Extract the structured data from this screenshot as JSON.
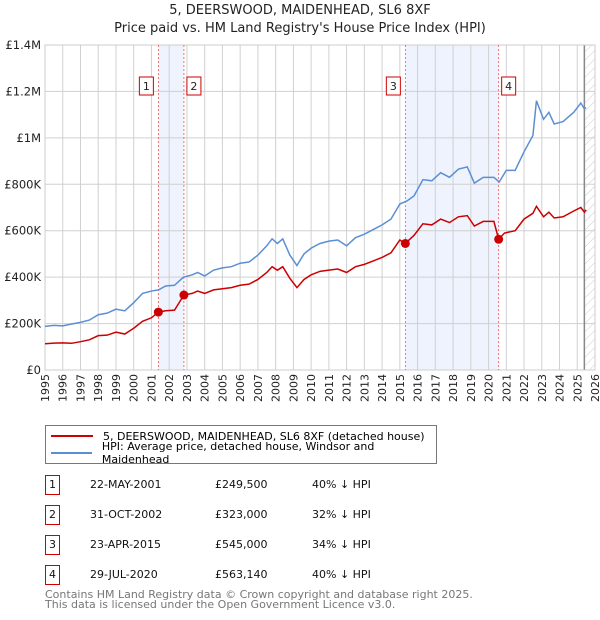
{
  "title": "5, DEERSWOOD, MAIDENHEAD, SL6 8XF",
  "subtitle": "Price paid vs. HM Land Registry's House Price Index (HPI)",
  "chart_data": {
    "type": "line",
    "xlim": [
      1995,
      2026
    ],
    "ylim": [
      0,
      1400000
    ],
    "yticks": [
      {
        "v": 0,
        "label": "£0"
      },
      {
        "v": 200000,
        "label": "£200K"
      },
      {
        "v": 400000,
        "label": "£400K"
      },
      {
        "v": 600000,
        "label": "£600K"
      },
      {
        "v": 800000,
        "label": "£800K"
      },
      {
        "v": 1000000,
        "label": "£1M"
      },
      {
        "v": 1200000,
        "label": "£1.2M"
      },
      {
        "v": 1400000,
        "label": "£1.4M"
      }
    ],
    "xticks": [
      "1995",
      "1996",
      "1997",
      "1998",
      "1999",
      "2000",
      "2001",
      "2002",
      "2003",
      "2004",
      "2005",
      "2006",
      "2007",
      "2008",
      "2009",
      "2010",
      "2011",
      "2012",
      "2013",
      "2014",
      "2015",
      "2016",
      "2017",
      "2018",
      "2019",
      "2020",
      "2021",
      "2022",
      "2023",
      "2024",
      "2025",
      "2026"
    ],
    "grid": true,
    "shaded_periods": [
      [
        2001.39,
        2002.83
      ],
      [
        2015.31,
        2020.57
      ]
    ],
    "forecast_start": 2025.4,
    "series": [
      {
        "name": "5, DEERSWOOD, MAIDENHEAD, SL6 8XF (detached house)",
        "color": "#cc0000",
        "points": [
          [
            1995,
            113
          ],
          [
            1995.5,
            116
          ],
          [
            1996,
            117
          ],
          [
            1996.5,
            115
          ],
          [
            1997,
            122
          ],
          [
            1997.5,
            130
          ],
          [
            1998,
            148
          ],
          [
            1998.5,
            150
          ],
          [
            1999,
            163
          ],
          [
            1999.5,
            155
          ],
          [
            2000,
            180
          ],
          [
            2000.5,
            210
          ],
          [
            2001,
            225
          ],
          [
            2001.39,
            249.5
          ],
          [
            2001.8,
            255
          ],
          [
            2002.3,
            258
          ],
          [
            2002.83,
            323
          ],
          [
            2003.3,
            330
          ],
          [
            2003.6,
            340
          ],
          [
            2004,
            330
          ],
          [
            2004.5,
            345
          ],
          [
            2005,
            350
          ],
          [
            2005.5,
            355
          ],
          [
            2006,
            365
          ],
          [
            2006.5,
            370
          ],
          [
            2007,
            390
          ],
          [
            2007.5,
            420
          ],
          [
            2007.8,
            445
          ],
          [
            2008.1,
            430
          ],
          [
            2008.4,
            445
          ],
          [
            2008.8,
            395
          ],
          [
            2009.2,
            355
          ],
          [
            2009.6,
            390
          ],
          [
            2010,
            410
          ],
          [
            2010.5,
            425
          ],
          [
            2011,
            430
          ],
          [
            2011.5,
            435
          ],
          [
            2012,
            420
          ],
          [
            2012.5,
            445
          ],
          [
            2013,
            455
          ],
          [
            2013.5,
            470
          ],
          [
            2014,
            485
          ],
          [
            2014.5,
            505
          ],
          [
            2015,
            560
          ],
          [
            2015.31,
            545
          ],
          [
            2015.8,
            580
          ],
          [
            2016.3,
            630
          ],
          [
            2016.8,
            625
          ],
          [
            2017.3,
            650
          ],
          [
            2017.8,
            635
          ],
          [
            2018.3,
            660
          ],
          [
            2018.8,
            665
          ],
          [
            2019.2,
            620
          ],
          [
            2019.7,
            640
          ],
          [
            2020.3,
            640
          ],
          [
            2020.57,
            563
          ],
          [
            2020.9,
            590
          ],
          [
            2021.5,
            600
          ],
          [
            2022,
            650
          ],
          [
            2022.5,
            675
          ],
          [
            2022.7,
            705
          ],
          [
            2023.1,
            660
          ],
          [
            2023.4,
            680
          ],
          [
            2023.7,
            655
          ],
          [
            2024.2,
            660
          ],
          [
            2024.8,
            685
          ],
          [
            2025.2,
            700
          ],
          [
            2025.4,
            680
          ],
          [
            2025.5,
            690
          ]
        ]
      },
      {
        "name": "HPI: Average price, detached house, Windsor and Maidenhead",
        "color": "#5b8fd4",
        "points": [
          [
            1995,
            188
          ],
          [
            1995.5,
            192
          ],
          [
            1996,
            190
          ],
          [
            1996.5,
            198
          ],
          [
            1997,
            205
          ],
          [
            1997.5,
            215
          ],
          [
            1998,
            238
          ],
          [
            1998.5,
            245
          ],
          [
            1999,
            262
          ],
          [
            1999.5,
            255
          ],
          [
            2000,
            290
          ],
          [
            2000.5,
            330
          ],
          [
            2001,
            340
          ],
          [
            2001.4,
            345
          ],
          [
            2001.8,
            362
          ],
          [
            2002.3,
            365
          ],
          [
            2002.8,
            400
          ],
          [
            2003.3,
            410
          ],
          [
            2003.6,
            420
          ],
          [
            2004,
            405
          ],
          [
            2004.5,
            430
          ],
          [
            2005,
            440
          ],
          [
            2005.5,
            445
          ],
          [
            2006,
            460
          ],
          [
            2006.5,
            465
          ],
          [
            2007,
            495
          ],
          [
            2007.5,
            535
          ],
          [
            2007.8,
            565
          ],
          [
            2008.1,
            545
          ],
          [
            2008.4,
            565
          ],
          [
            2008.8,
            495
          ],
          [
            2009.2,
            450
          ],
          [
            2009.6,
            500
          ],
          [
            2010,
            525
          ],
          [
            2010.5,
            545
          ],
          [
            2011,
            555
          ],
          [
            2011.5,
            560
          ],
          [
            2012,
            535
          ],
          [
            2012.5,
            570
          ],
          [
            2013,
            585
          ],
          [
            2013.5,
            605
          ],
          [
            2014,
            625
          ],
          [
            2014.5,
            650
          ],
          [
            2015,
            715
          ],
          [
            2015.4,
            728
          ],
          [
            2015.8,
            750
          ],
          [
            2016.3,
            820
          ],
          [
            2016.8,
            815
          ],
          [
            2017.3,
            850
          ],
          [
            2017.8,
            830
          ],
          [
            2018.3,
            865
          ],
          [
            2018.8,
            875
          ],
          [
            2019.2,
            805
          ],
          [
            2019.7,
            830
          ],
          [
            2020.3,
            830
          ],
          [
            2020.6,
            810
          ],
          [
            2021,
            860
          ],
          [
            2021.5,
            860
          ],
          [
            2022,
            940
          ],
          [
            2022.5,
            1010
          ],
          [
            2022.7,
            1160
          ],
          [
            2023.1,
            1080
          ],
          [
            2023.4,
            1110
          ],
          [
            2023.7,
            1060
          ],
          [
            2024.2,
            1070
          ],
          [
            2024.8,
            1110
          ],
          [
            2025.2,
            1150
          ],
          [
            2025.4,
            1125
          ],
          [
            2025.5,
            1130
          ]
        ]
      }
    ],
    "sales": [
      {
        "n": "1",
        "x": 2001.39,
        "y": 249.5
      },
      {
        "n": "2",
        "x": 2002.83,
        "y": 323
      },
      {
        "n": "3",
        "x": 2015.31,
        "y": 545
      },
      {
        "n": "4",
        "x": 2020.57,
        "y": 563.14
      }
    ]
  },
  "legend": [
    "5, DEERSWOOD, MAIDENHEAD, SL6 8XF (detached house)",
    "HPI: Average price, detached house, Windsor and Maidenhead"
  ],
  "table": [
    {
      "n": "1",
      "date": "22-MAY-2001",
      "price": "£249,500",
      "diff": "40% ↓ HPI"
    },
    {
      "n": "2",
      "date": "31-OCT-2002",
      "price": "£323,000",
      "diff": "32% ↓ HPI"
    },
    {
      "n": "3",
      "date": "23-APR-2015",
      "price": "£545,000",
      "diff": "34% ↓ HPI"
    },
    {
      "n": "4",
      "date": "29-JUL-2020",
      "price": "£563,140",
      "diff": "40% ↓ HPI"
    }
  ],
  "footer": [
    "Contains HM Land Registry data © Crown copyright and database right 2025.",
    "This data is licensed under the Open Government Licence v3.0."
  ]
}
